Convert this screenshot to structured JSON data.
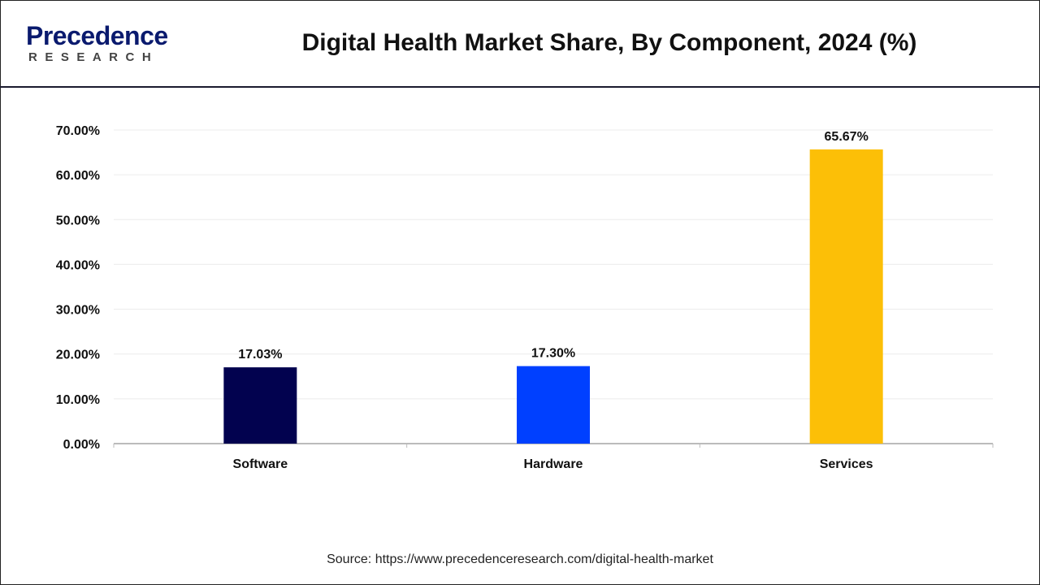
{
  "header": {
    "logo_text_main": "Precedence",
    "logo_text_sub": "RESEARCH",
    "title": "Digital Health Market Share, By Component, 2024 (%)"
  },
  "chart_data": {
    "type": "bar",
    "title": "Digital Health Market Share, By Component, 2024 (%)",
    "categories": [
      "Software",
      "Hardware",
      "Services"
    ],
    "values": [
      17.03,
      17.3,
      65.67
    ],
    "data_labels": [
      "17.03%",
      "17.30%",
      "65.67%"
    ],
    "colors": [
      "#02024f",
      "#0040ff",
      "#fcbf07"
    ],
    "ylim": [
      0,
      70
    ],
    "yticks": [
      "0.00%",
      "10.00%",
      "20.00%",
      "30.00%",
      "40.00%",
      "50.00%",
      "60.00%",
      "70.00%"
    ],
    "xlabel": "",
    "ylabel": "",
    "grid": true,
    "legend": "none"
  },
  "source": "Source: https://www.precedenceresearch.com/digital-health-market"
}
